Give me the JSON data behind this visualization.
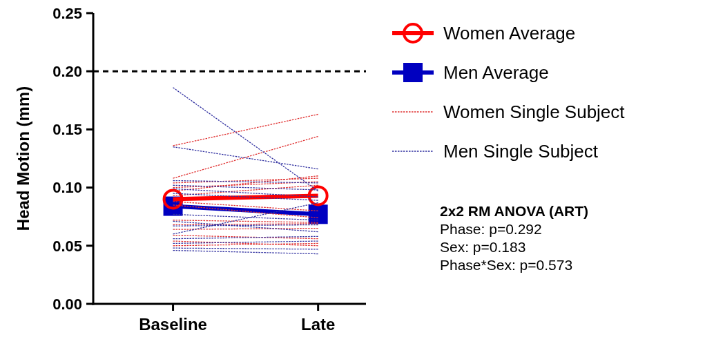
{
  "chart_data": {
    "type": "line",
    "categories": [
      "Baseline",
      "Late"
    ],
    "ylabel": "Head Motion (mm)",
    "ylim": [
      0,
      0.25
    ],
    "yticks": [
      {
        "value": 0,
        "label": "0.00"
      },
      {
        "value": 0.05,
        "label": "0.05"
      },
      {
        "value": 0.1,
        "label": "0.10"
      },
      {
        "value": 0.15,
        "label": "0.15"
      },
      {
        "value": 0.2,
        "label": "0.20"
      },
      {
        "value": 0.25,
        "label": "0.25"
      }
    ],
    "grid": false,
    "legend": "right",
    "ref_lines": [
      {
        "axis": "y",
        "value": 0.2,
        "color": "#000000",
        "line_style": "dashed"
      }
    ],
    "annotations": [
      "2x2 RM ANOVA (ART)",
      "Phase: p=0.292",
      "Sex: p=0.183",
      "Phase*Sex: p=0.573"
    ],
    "series": [
      {
        "name": "Women Average",
        "color": "#ff0000",
        "values": [
          0.09,
          0.093
        ],
        "marker": "circle",
        "line_style": "solid"
      },
      {
        "name": "Men Average",
        "color": "#0000c0",
        "values": [
          0.084,
          0.077
        ],
        "marker": "square",
        "line_style": "solid"
      },
      {
        "name": "Women Single Subject",
        "color": "#e03030",
        "values": [
          0.136,
          0.163
        ],
        "marker": "none",
        "line_style": "dotted"
      },
      {
        "color": "#e03030",
        "values": [
          0.108,
          0.144
        ],
        "marker": "none",
        "line_style": "dotted"
      },
      {
        "color": "#e03030",
        "values": [
          0.104,
          0.108
        ],
        "marker": "none",
        "line_style": "dotted"
      },
      {
        "color": "#e03030",
        "values": [
          0.1,
          0.105
        ],
        "marker": "none",
        "line_style": "dotted"
      },
      {
        "color": "#e03030",
        "values": [
          0.097,
          0.11
        ],
        "marker": "none",
        "line_style": "dotted"
      },
      {
        "color": "#e03030",
        "values": [
          0.093,
          0.102
        ],
        "marker": "none",
        "line_style": "dotted"
      },
      {
        "color": "#e03030",
        "values": [
          0.088,
          0.08
        ],
        "marker": "none",
        "line_style": "dotted"
      },
      {
        "color": "#e03030",
        "values": [
          0.085,
          0.074
        ],
        "marker": "none",
        "line_style": "dotted"
      },
      {
        "color": "#e03030",
        "values": [
          0.072,
          0.07
        ],
        "marker": "none",
        "line_style": "dotted"
      },
      {
        "color": "#e03030",
        "values": [
          0.068,
          0.069
        ],
        "marker": "none",
        "line_style": "dotted"
      },
      {
        "color": "#e03030",
        "values": [
          0.064,
          0.065
        ],
        "marker": "none",
        "line_style": "dotted"
      },
      {
        "color": "#e03030",
        "values": [
          0.059,
          0.056
        ],
        "marker": "none",
        "line_style": "dotted"
      },
      {
        "color": "#e03030",
        "values": [
          0.054,
          0.05
        ],
        "marker": "none",
        "line_style": "dotted"
      },
      {
        "color": "#e03030",
        "values": [
          0.05,
          0.052
        ],
        "marker": "none",
        "line_style": "dotted"
      },
      {
        "name": "Men Single  Subject",
        "color": "#3030a0",
        "values": [
          0.186,
          0.097
        ],
        "marker": "none",
        "line_style": "dotted"
      },
      {
        "color": "#3030a0",
        "values": [
          0.135,
          0.116
        ],
        "marker": "none",
        "line_style": "dotted"
      },
      {
        "color": "#3030a0",
        "values": [
          0.106,
          0.104
        ],
        "marker": "none",
        "line_style": "dotted"
      },
      {
        "color": "#3030a0",
        "values": [
          0.102,
          0.098
        ],
        "marker": "none",
        "line_style": "dotted"
      },
      {
        "color": "#3030a0",
        "values": [
          0.099,
          0.092
        ],
        "marker": "none",
        "line_style": "dotted"
      },
      {
        "color": "#3030a0",
        "values": [
          0.095,
          0.089
        ],
        "marker": "none",
        "line_style": "dotted"
      },
      {
        "color": "#3030a0",
        "values": [
          0.077,
          0.072
        ],
        "marker": "none",
        "line_style": "dotted"
      },
      {
        "color": "#3030a0",
        "values": [
          0.071,
          0.062
        ],
        "marker": "none",
        "line_style": "dotted"
      },
      {
        "color": "#3030a0",
        "values": [
          0.067,
          0.068
        ],
        "marker": "none",
        "line_style": "dotted"
      },
      {
        "color": "#3030a0",
        "values": [
          0.06,
          0.087
        ],
        "marker": "none",
        "line_style": "dotted"
      },
      {
        "color": "#3030a0",
        "values": [
          0.056,
          0.058
        ],
        "marker": "none",
        "line_style": "dotted"
      },
      {
        "color": "#3030a0",
        "values": [
          0.052,
          0.054
        ],
        "marker": "none",
        "line_style": "dotted"
      },
      {
        "color": "#3030a0",
        "values": [
          0.048,
          0.047
        ],
        "marker": "none",
        "line_style": "dotted"
      },
      {
        "color": "#3030a0",
        "values": [
          0.046,
          0.043
        ],
        "marker": "none",
        "line_style": "dotted"
      }
    ]
  }
}
